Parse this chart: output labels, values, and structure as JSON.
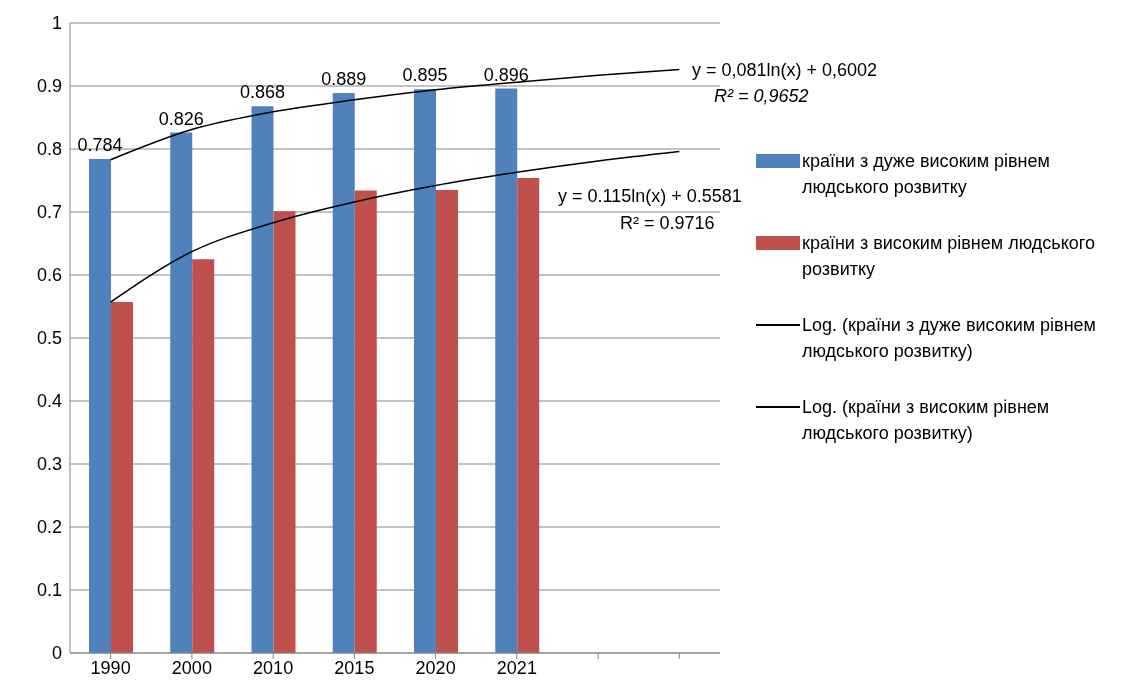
{
  "chart_data": {
    "type": "bar",
    "categories": [
      "1990",
      "2000",
      "2010",
      "2015",
      "2020",
      "2021",
      null,
      null
    ],
    "series": [
      {
        "name": "країни з дуже високим рівнем людського розвитку",
        "color": "#4f81bd",
        "values": [
          0.784,
          0.826,
          0.868,
          0.889,
          0.895,
          0.896,
          null,
          null
        ],
        "value_labels": [
          "0.784",
          "0.826",
          "0.868",
          "0.889",
          "0.895",
          "0.896",
          null,
          null
        ]
      },
      {
        "name": "країни з високим рівнем людського розвитку",
        "color": "#c0504d",
        "values": [
          0.557,
          0.625,
          0.701,
          0.734,
          0.735,
          0.754,
          null,
          null
        ]
      },
      {
        "name": "Log. (країни з дуже високим рівнем людського розвитку)",
        "type": "line",
        "color": "#000000",
        "values": [
          0.783,
          0.831,
          0.859,
          0.878,
          0.894,
          0.906,
          0.917,
          0.926
        ]
      },
      {
        "name": "Log. (країни з високим рівнем людського розвитку)",
        "type": "line",
        "color": "#000000",
        "values": [
          0.557,
          0.637,
          0.683,
          0.716,
          0.742,
          0.763,
          0.781,
          0.796
        ]
      }
    ],
    "ylim": [
      0,
      1
    ],
    "yticks": [
      0,
      0.1,
      0.2,
      0.3,
      0.4,
      0.5,
      0.6,
      0.7,
      0.8,
      0.9,
      1
    ],
    "grid": "y",
    "legend": "right",
    "marker": "none",
    "annotations": [
      "y = 0,081ln(x) + 0,6002",
      "R² = 0,9652",
      "y = 0.115ln(x) + 0.5581",
      "R² = 0.9716"
    ]
  }
}
